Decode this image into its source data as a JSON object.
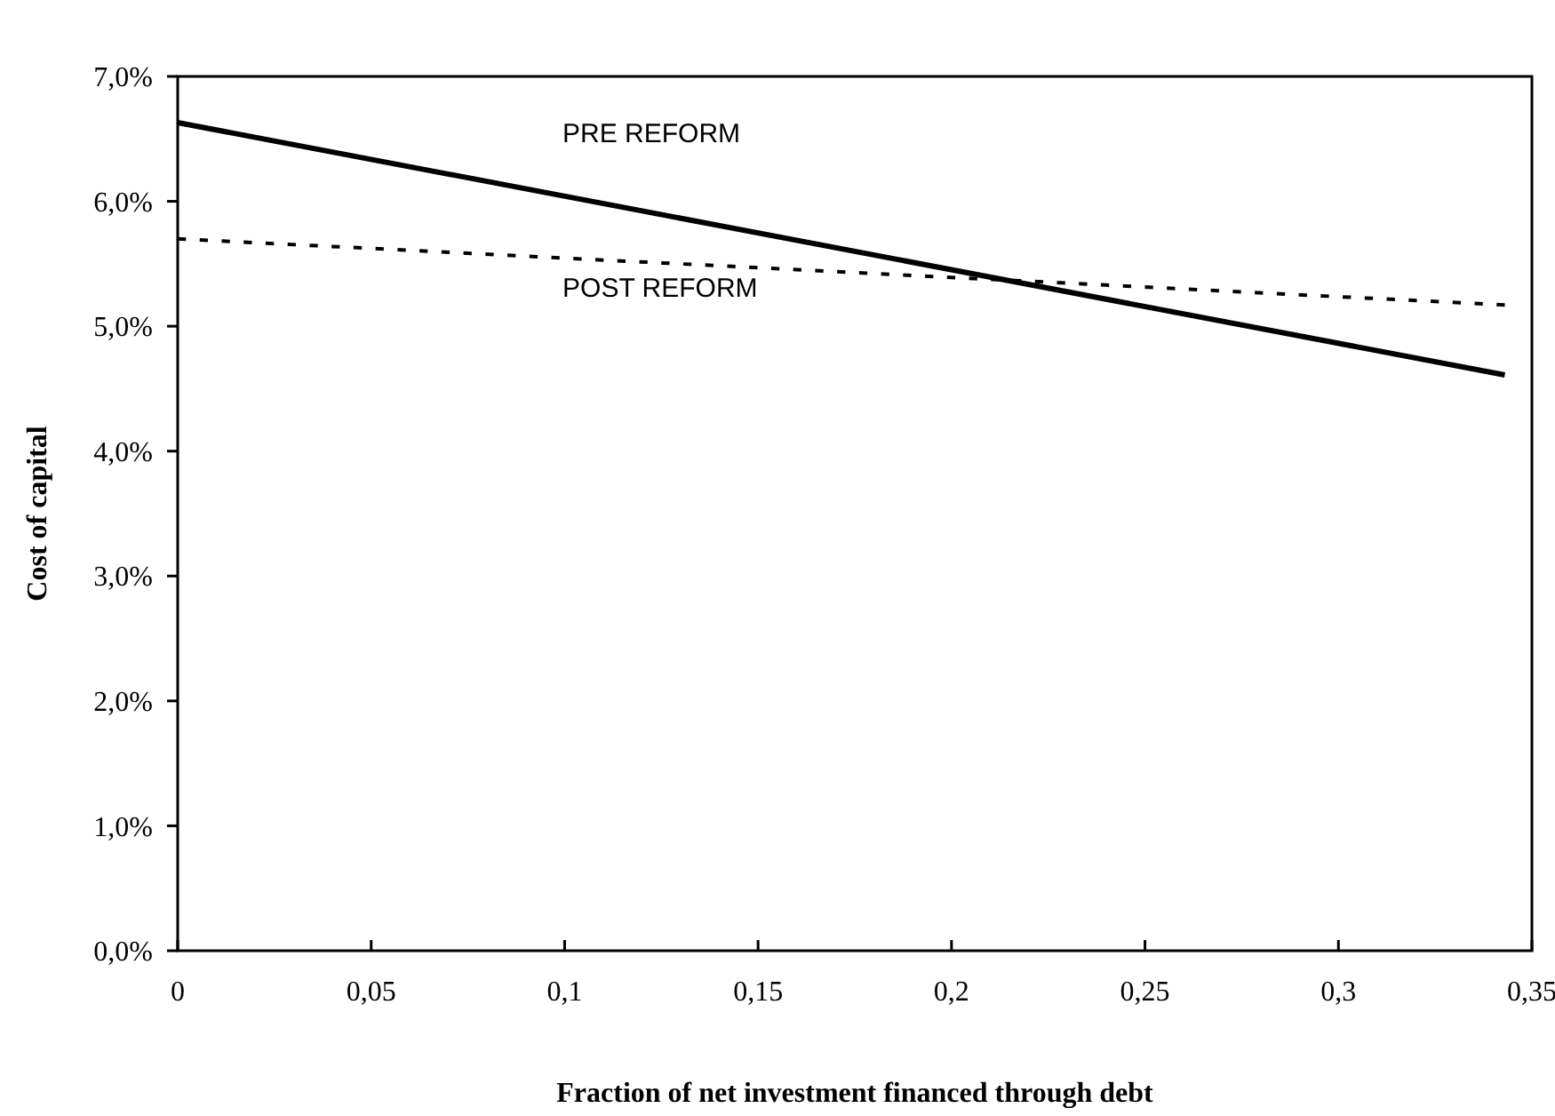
{
  "chart_data": {
    "type": "line",
    "xlabel": "Fraction of net investment financed through debt",
    "ylabel": "Cost of capital",
    "xlim": [
      0,
      0.35
    ],
    "ylim": [
      0,
      7
    ],
    "xticks": [
      0,
      {
        "value": 0.05,
        "label": "0,05"
      },
      {
        "value": 0.1,
        "label": "0,1"
      },
      {
        "value": 0.15,
        "label": "0,15"
      },
      {
        "value": 0.2,
        "label": "0,2"
      },
      {
        "value": 0.25,
        "label": "0,25"
      },
      {
        "value": 0.3,
        "label": "0,3"
      },
      {
        "value": 0.35,
        "label": "0,35"
      }
    ],
    "yticks": [
      {
        "value": 0,
        "label": "0,0%"
      },
      {
        "value": 1,
        "label": "1,0%"
      },
      {
        "value": 2,
        "label": "2,0%"
      },
      {
        "value": 3,
        "label": "3,0%"
      },
      {
        "value": 4,
        "label": "4,0%"
      },
      {
        "value": 5,
        "label": "5,0%"
      },
      {
        "value": 6,
        "label": "6,0%"
      },
      {
        "value": 7,
        "label": "7,0%"
      }
    ],
    "grid": false,
    "legend": false,
    "marker": "none",
    "x": [
      0,
      0.343
    ],
    "series": [
      {
        "name": "PRE REFORM",
        "color": "#000000",
        "line_style": "solid",
        "values": [
          6.63,
          4.61
        ]
      },
      {
        "name": "POST REFORM",
        "color": "#000000",
        "line_style": "dashed",
        "values": [
          5.7,
          5.17
        ]
      }
    ]
  }
}
